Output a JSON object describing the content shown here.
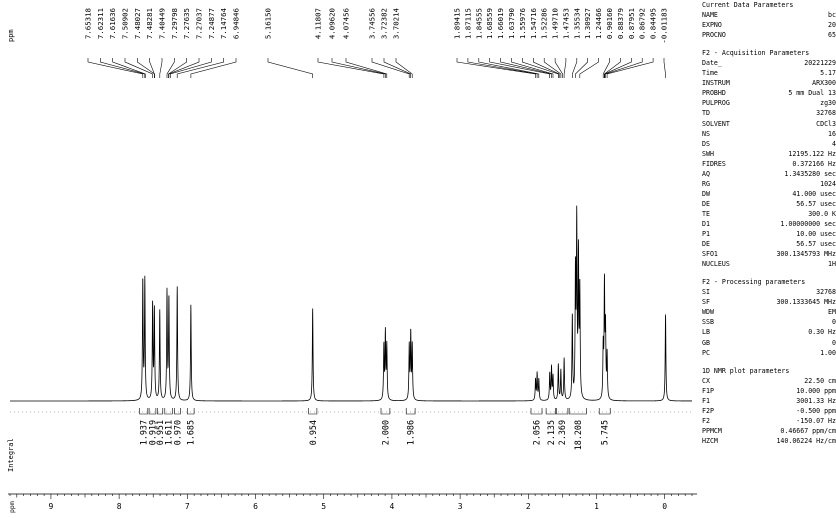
{
  "chart_data": {
    "type": "line",
    "xlabel": "ppm",
    "ylabel_integral": "Integral",
    "xlim": [
      9.6,
      -0.4
    ],
    "x_ticks": [
      9,
      8,
      7,
      6,
      5,
      4,
      3,
      2,
      1,
      0
    ],
    "x_unit_label": "ppm",
    "peak_labels": [
      {
        "label": "7.65318",
        "shift": 7.653
      },
      {
        "label": "7.62311",
        "shift": 7.623
      },
      {
        "label": "7.61636",
        "shift": 7.616
      },
      {
        "label": "7.50902",
        "shift": 7.509
      },
      {
        "label": "7.48027",
        "shift": 7.48
      },
      {
        "label": "7.48281",
        "shift": 7.483
      },
      {
        "label": "7.40449",
        "shift": 7.404
      },
      {
        "label": "7.29798",
        "shift": 7.298
      },
      {
        "label": "7.27635",
        "shift": 7.276
      },
      {
        "label": "7.27037",
        "shift": 7.27
      },
      {
        "label": "7.24877",
        "shift": 7.249
      },
      {
        "label": "7.14764",
        "shift": 7.148
      },
      {
        "label": "6.94846",
        "shift": 6.948
      },
      {
        "label": "5.16150",
        "shift": 5.162
      },
      {
        "label": "4.11807",
        "shift": 4.118
      },
      {
        "label": "4.09620",
        "shift": 4.096
      },
      {
        "label": "4.07456",
        "shift": 4.075
      },
      {
        "label": "3.74556",
        "shift": 3.746
      },
      {
        "label": "3.72382",
        "shift": 3.724
      },
      {
        "label": "3.70214",
        "shift": 3.702
      },
      {
        "label": "1.89415",
        "shift": 1.894
      },
      {
        "label": "1.87115",
        "shift": 1.871
      },
      {
        "label": "1.84555",
        "shift": 1.846
      },
      {
        "label": "1.68559",
        "shift": 1.686
      },
      {
        "label": "1.66019",
        "shift": 1.66
      },
      {
        "label": "1.63790",
        "shift": 1.638
      },
      {
        "label": "1.55976",
        "shift": 1.56
      },
      {
        "label": "1.54716",
        "shift": 1.547
      },
      {
        "label": "1.52286",
        "shift": 1.523
      },
      {
        "label": "1.49710",
        "shift": 1.497
      },
      {
        "label": "1.47453",
        "shift": 1.475
      },
      {
        "label": "1.35534",
        "shift": 1.355
      },
      {
        "label": "1.30927",
        "shift": 1.309
      },
      {
        "label": "1.24466",
        "shift": 1.245
      },
      {
        "label": "0.90160",
        "shift": 0.902
      },
      {
        "label": "0.88379",
        "shift": 0.884
      },
      {
        "label": "0.87951",
        "shift": 0.88
      },
      {
        "label": "0.86792",
        "shift": 0.868
      },
      {
        "label": "0.84495",
        "shift": 0.845
      },
      {
        "label": "-0.01183",
        "shift": -0.012
      }
    ],
    "peaks": [
      {
        "shift": 7.653,
        "height": 0.4
      },
      {
        "shift": 7.623,
        "height": 0.4
      },
      {
        "shift": 7.509,
        "height": 0.32
      },
      {
        "shift": 7.483,
        "height": 0.3
      },
      {
        "shift": 7.404,
        "height": 0.3
      },
      {
        "shift": 7.298,
        "height": 0.36
      },
      {
        "shift": 7.27,
        "height": 0.34
      },
      {
        "shift": 7.148,
        "height": 0.38
      },
      {
        "shift": 6.948,
        "height": 0.32
      },
      {
        "shift": 5.162,
        "height": 0.31
      },
      {
        "shift": 4.118,
        "height": 0.18
      },
      {
        "shift": 4.096,
        "height": 0.22
      },
      {
        "shift": 4.075,
        "height": 0.18
      },
      {
        "shift": 3.746,
        "height": 0.18
      },
      {
        "shift": 3.724,
        "height": 0.22
      },
      {
        "shift": 3.702,
        "height": 0.18
      },
      {
        "shift": 1.894,
        "height": 0.07
      },
      {
        "shift": 1.871,
        "height": 0.09
      },
      {
        "shift": 1.846,
        "height": 0.07
      },
      {
        "shift": 1.686,
        "height": 0.09
      },
      {
        "shift": 1.66,
        "height": 0.11
      },
      {
        "shift": 1.638,
        "height": 0.08
      },
      {
        "shift": 1.56,
        "height": 0.12
      },
      {
        "shift": 1.523,
        "height": 0.1
      },
      {
        "shift": 1.475,
        "height": 0.14
      },
      {
        "shift": 1.355,
        "height": 0.28
      },
      {
        "shift": 1.309,
        "height": 0.42
      },
      {
        "shift": 1.29,
        "height": 0.58
      },
      {
        "shift": 1.265,
        "height": 0.47
      },
      {
        "shift": 1.245,
        "height": 0.36
      },
      {
        "shift": 0.902,
        "height": 0.17
      },
      {
        "shift": 0.884,
        "height": 0.38
      },
      {
        "shift": 0.868,
        "height": 0.23
      },
      {
        "shift": 0.845,
        "height": 0.15
      },
      {
        "shift": -0.012,
        "height": 0.29
      }
    ],
    "integrals": [
      {
        "label": "1.937",
        "from": 7.7,
        "to": 7.58
      },
      {
        "label": "0.919",
        "from": 7.56,
        "to": 7.46
      },
      {
        "label": "0.951",
        "from": 7.44,
        "to": 7.36
      },
      {
        "label": "1.611",
        "from": 7.33,
        "to": 7.22
      },
      {
        "label": "0.970",
        "from": 7.19,
        "to": 7.1
      },
      {
        "label": "1.685",
        "from": 7.0,
        "to": 6.9
      },
      {
        "label": "0.954",
        "from": 5.22,
        "to": 5.1
      },
      {
        "label": "2.000",
        "from": 4.16,
        "to": 4.03
      },
      {
        "label": "1.986",
        "from": 3.79,
        "to": 3.66
      },
      {
        "label": "2.056",
        "from": 1.96,
        "to": 1.8
      },
      {
        "label": "2.135",
        "from": 1.74,
        "to": 1.6
      },
      {
        "label": "2.369",
        "from": 1.59,
        "to": 1.42
      },
      {
        "label": "18.208",
        "from": 1.4,
        "to": 1.15
      },
      {
        "label": "5.745",
        "from": 0.96,
        "to": 0.8
      }
    ]
  },
  "params": {
    "current_title": "Current Data Parameters",
    "current": [
      {
        "k": "NAME",
        "v": "bc"
      },
      {
        "k": "EXPNO",
        "v": "20"
      },
      {
        "k": "PROCNO",
        "v": "65"
      }
    ],
    "f2acq_title": "F2 - Acquisition Parameters",
    "f2acq": [
      {
        "k": "Date_",
        "v": "20221229"
      },
      {
        "k": "Time",
        "v": "5.17"
      },
      {
        "k": "INSTRUM",
        "v": "ARX300"
      },
      {
        "k": "PROBHD",
        "v": "5 mm Dual 13"
      },
      {
        "k": "PULPROG",
        "v": "zg30"
      },
      {
        "k": "TD",
        "v": "32768"
      },
      {
        "k": "SOLVENT",
        "v": "CDCl3"
      },
      {
        "k": "NS",
        "v": "16"
      },
      {
        "k": "DS",
        "v": "4"
      },
      {
        "k": "SWH",
        "v": "12195.122 Hz"
      },
      {
        "k": "FIDRES",
        "v": "0.372166 Hz"
      },
      {
        "k": "AQ",
        "v": "1.3435280 sec"
      },
      {
        "k": "RG",
        "v": "1024"
      },
      {
        "k": "DW",
        "v": "41.000 usec"
      },
      {
        "k": "DE",
        "v": "56.57 usec"
      },
      {
        "k": "TE",
        "v": "300.0 K"
      },
      {
        "k": "D1",
        "v": "1.00000000 sec"
      },
      {
        "k": "P1",
        "v": "10.00 usec"
      },
      {
        "k": "DE",
        "v": "56.57 usec"
      },
      {
        "k": "SFO1",
        "v": "300.1345793 MHz"
      },
      {
        "k": "NUCLEUS",
        "v": "1H"
      }
    ],
    "f2proc_title": "F2 - Processing parameters",
    "f2proc": [
      {
        "k": "SI",
        "v": "32768"
      },
      {
        "k": "SF",
        "v": "300.1333645 MHz"
      },
      {
        "k": "WDW",
        "v": "EM"
      },
      {
        "k": "SSB",
        "v": "0"
      },
      {
        "k": "LB",
        "v": "0.30 Hz"
      },
      {
        "k": "GB",
        "v": "0"
      },
      {
        "k": "PC",
        "v": "1.00"
      }
    ],
    "plot_title": "1D NMR plot parameters",
    "plot": [
      {
        "k": "CX",
        "v": "22.50 cm"
      },
      {
        "k": "F1P",
        "v": "10.000 ppm"
      },
      {
        "k": "F1",
        "v": "3001.33 Hz"
      },
      {
        "k": "F2P",
        "v": "-0.500 ppm"
      },
      {
        "k": "F2",
        "v": "-150.07 Hz"
      },
      {
        "k": "PPMCM",
        "v": "0.46667 ppm/cm"
      },
      {
        "k": "HZCM",
        "v": "140.06224 Hz/cm"
      }
    ]
  }
}
